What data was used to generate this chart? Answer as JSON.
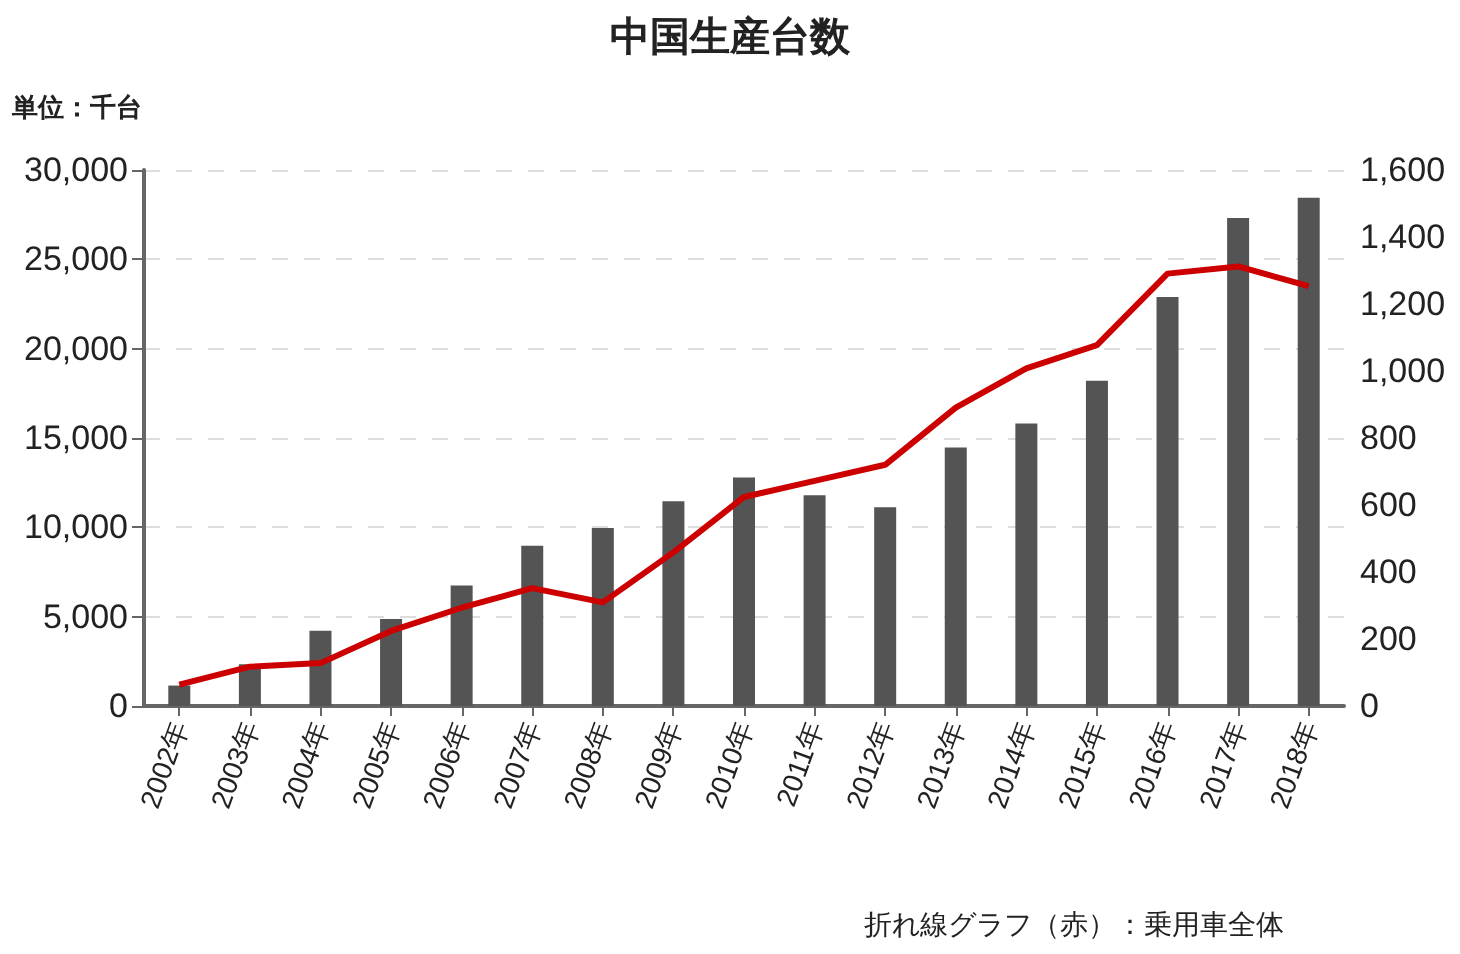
{
  "chart_data": {
    "type": "bar",
    "title": "中国生産台数",
    "annotations": [
      "単位：千台",
      "折れ線グラフ（赤）：乗用車全体"
    ],
    "categories": [
      "2002年",
      "2003年",
      "2004年",
      "2005年",
      "2006年",
      "2007年",
      "2008年",
      "2009年",
      "2010年",
      "2011年",
      "2012年",
      "2013年",
      "2014年",
      "2015年",
      "2016年",
      "2017年",
      "2018年"
    ],
    "series": [
      {
        "axis": "y2",
        "color": "#545454",
        "values": [
          61,
          125,
          225,
          260,
          360,
          478,
          531,
          611,
          682,
          629,
          593,
          772,
          843,
          971,
          1221,
          1457,
          1517
        ]
      },
      {
        "type": "line",
        "color": "#cc0000",
        "values": [
          1200,
          2200,
          2400,
          4200,
          5500,
          6600,
          5800,
          8600,
          11700,
          12600,
          13500,
          16700,
          18900,
          20200,
          24200,
          24600,
          23500
        ]
      }
    ],
    "ylim": [
      0,
      30000
    ],
    "yticks": [
      0,
      {
        "value": 5000,
        "label": "5,000"
      },
      {
        "value": 10000,
        "label": "10,000"
      },
      {
        "value": 15000,
        "label": "15,000"
      },
      {
        "value": 20000,
        "label": "20,000"
      },
      {
        "value": 25000,
        "label": "25,000"
      },
      {
        "value": 30000,
        "label": "30,000"
      }
    ],
    "y2lim": [
      0,
      1600
    ],
    "y2ticks": [
      0,
      200,
      400,
      600,
      800,
      {
        "value": 1000,
        "label": "1,000"
      },
      {
        "value": 1200,
        "label": "1,200"
      },
      {
        "value": 1400,
        "label": "1,400"
      },
      {
        "value": 1600,
        "label": "1,600"
      }
    ],
    "grid": "y",
    "marker": "none",
    "line_style": "solid"
  }
}
